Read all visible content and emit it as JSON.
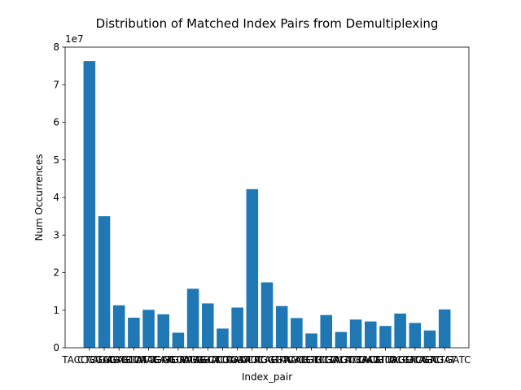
{
  "chart_data": {
    "type": "bar",
    "title": "Distribution of Matched Index Pairs from Demultiplexing",
    "xlabel": "Index_pair",
    "ylabel": "Num Occurrences",
    "offset_text": "1e7",
    "ylim": [
      0,
      8
    ],
    "yticks": [
      0,
      1,
      2,
      3,
      4,
      5,
      6,
      7,
      8
    ],
    "ytick_labels": [
      "0",
      "1",
      "2",
      "3",
      "4",
      "5",
      "6",
      "7",
      "8"
    ],
    "bar_color": "#1f77b4",
    "categories": [
      "TACCGGAG",
      "CTCTGCAG",
      "AGAGTCCA",
      "CAGCATAC",
      "GTCACGAG",
      "ATTGGCGA",
      "GATCTAGG",
      "TGAACGCA",
      "CTAGCTCA",
      "GGACTGAT",
      "TCGAGAGC",
      "CACTTCAC",
      "ACAGGTAC",
      "TCGGTCAG",
      "GTAACGTC",
      "AGCCTTGA",
      "TGTCGACT",
      "GCTAGTGA",
      "CCTCTACA",
      "ATCACGTG",
      "GAGTTAGC",
      "TTCAGGCA",
      "ACGTCGTC",
      "TACGAGAT",
      "AGCTGATC"
    ],
    "values": [
      7.63,
      3.5,
      1.13,
      0.8,
      1.01,
      0.89,
      0.4,
      1.57,
      1.18,
      0.51,
      1.07,
      4.22,
      1.74,
      1.11,
      0.79,
      0.38,
      0.87,
      0.42,
      0.75,
      0.7,
      0.58,
      0.91,
      0.66,
      0.46,
      1.02
    ],
    "grid": false,
    "legend": "none"
  }
}
